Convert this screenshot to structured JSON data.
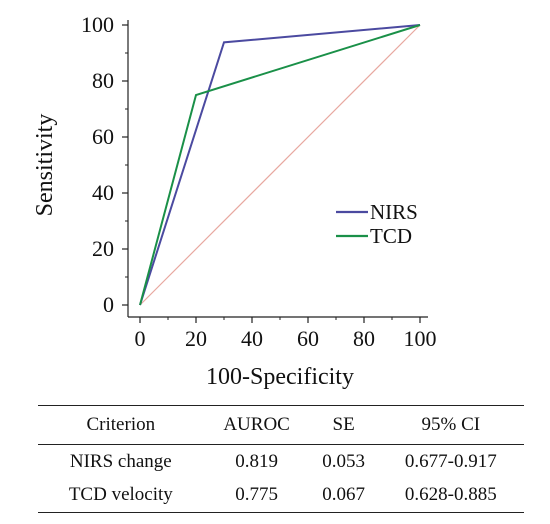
{
  "chart_data": {
    "type": "line",
    "xlabel": "100-Specificity",
    "ylabel": "Sensitivity",
    "xlim": [
      0,
      100
    ],
    "ylim": [
      0,
      100
    ],
    "xticks": [
      0,
      20,
      40,
      60,
      80,
      100
    ],
    "yticks": [
      0,
      20,
      40,
      60,
      80,
      100
    ],
    "grid": false,
    "legend_position": "bottom-right",
    "series": [
      {
        "name": "NIRS",
        "color": "#4b4aa0",
        "x": [
          0,
          30,
          100
        ],
        "y": [
          0,
          93.8,
          100
        ]
      },
      {
        "name": "TCD",
        "color": "#1a9048",
        "x": [
          0,
          20,
          100
        ],
        "y": [
          0,
          75,
          100
        ]
      }
    ],
    "reference_line": {
      "color": "#e8a8a0",
      "x": [
        0,
        100
      ],
      "y": [
        0,
        100
      ]
    }
  },
  "table": {
    "headers": [
      "Criterion",
      "AUROC",
      "SE",
      "95% CI"
    ],
    "rows": [
      [
        "NIRS change",
        "0.819",
        "0.053",
        "0.677-0.917"
      ],
      [
        "TCD velocity",
        "0.775",
        "0.067",
        "0.628-0.885"
      ]
    ]
  }
}
